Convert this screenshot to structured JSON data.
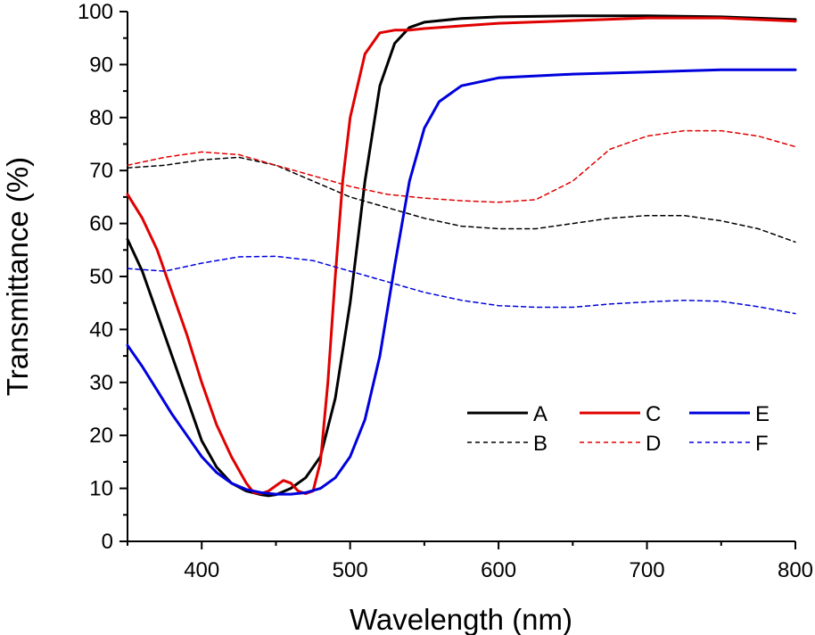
{
  "chart_data": {
    "type": "line",
    "xlabel": "Wavelength (nm)",
    "ylabel": "Transmittance (%)",
    "xlim": [
      350,
      800
    ],
    "ylim": [
      0,
      100
    ],
    "x_ticks": [
      400,
      500,
      600,
      700,
      800
    ],
    "y_ticks": [
      0,
      10,
      20,
      30,
      40,
      50,
      60,
      70,
      80,
      90,
      100
    ],
    "grid": false,
    "legend_position": "bottom-right",
    "series": [
      {
        "name": "A",
        "color": "#000000",
        "dash": "solid",
        "x": [
          350,
          360,
          370,
          380,
          390,
          400,
          410,
          420,
          430,
          440,
          445,
          450,
          460,
          470,
          480,
          490,
          500,
          510,
          520,
          530,
          540,
          550,
          575,
          600,
          650,
          700,
          750,
          800
        ],
        "y": [
          57,
          51,
          43,
          35,
          27,
          19,
          14,
          11,
          9.5,
          8.8,
          8.6,
          8.8,
          10,
          12,
          16,
          27,
          45,
          68,
          86,
          94,
          97,
          98,
          98.7,
          99,
          99.2,
          99.2,
          99,
          98.5
        ]
      },
      {
        "name": "B",
        "color": "#000000",
        "dash": "dashed",
        "x": [
          350,
          375,
          400,
          425,
          450,
          475,
          500,
          525,
          550,
          575,
          600,
          625,
          650,
          675,
          700,
          725,
          750,
          775,
          800
        ],
        "y": [
          70.5,
          71,
          72,
          72.5,
          71,
          68,
          65,
          63,
          61,
          59.5,
          59,
          59,
          60,
          61,
          61.5,
          61.5,
          60.5,
          59,
          56.5
        ]
      },
      {
        "name": "C",
        "color": "#e00000",
        "dash": "solid",
        "x": [
          350,
          360,
          370,
          380,
          390,
          400,
          410,
          420,
          430,
          435,
          440,
          445,
          450,
          455,
          460,
          465,
          470,
          475,
          480,
          485,
          490,
          495,
          500,
          510,
          520,
          530,
          540,
          550,
          575,
          600,
          650,
          700,
          750,
          800
        ],
        "y": [
          65.5,
          61,
          55,
          47,
          39,
          30,
          22,
          16,
          11,
          9.2,
          9,
          9.5,
          10.5,
          11.5,
          11,
          9.5,
          9,
          9.5,
          15,
          30,
          50,
          68,
          80,
          92,
          96,
          96.5,
          96.5,
          96.8,
          97.3,
          97.8,
          98.3,
          98.8,
          98.8,
          98.2
        ]
      },
      {
        "name": "D",
        "color": "#e00000",
        "dash": "dashed",
        "x": [
          350,
          375,
          400,
          425,
          450,
          475,
          500,
          525,
          550,
          575,
          600,
          625,
          650,
          675,
          700,
          725,
          750,
          775,
          800
        ],
        "y": [
          71,
          72.5,
          73.5,
          73,
          71,
          69,
          67,
          65.5,
          64.8,
          64.3,
          64,
          64.5,
          68,
          74,
          76.5,
          77.5,
          77.5,
          76.5,
          74.5
        ]
      },
      {
        "name": "E",
        "color": "#0000dd",
        "dash": "solid",
        "x": [
          350,
          360,
          370,
          380,
          390,
          400,
          410,
          420,
          430,
          440,
          450,
          460,
          470,
          480,
          490,
          500,
          510,
          520,
          530,
          540,
          550,
          560,
          575,
          600,
          650,
          700,
          750,
          800
        ],
        "y": [
          37,
          33,
          28.5,
          24,
          20,
          16,
          13,
          11,
          9.8,
          9.2,
          8.9,
          8.9,
          9.2,
          10,
          12,
          16,
          23,
          35,
          52,
          68,
          78,
          83,
          86,
          87.5,
          88.2,
          88.6,
          89,
          89
        ]
      },
      {
        "name": "F",
        "color": "#0000dd",
        "dash": "dashed",
        "x": [
          350,
          375,
          400,
          425,
          450,
          475,
          500,
          525,
          550,
          575,
          600,
          625,
          650,
          675,
          700,
          725,
          750,
          775,
          800
        ],
        "y": [
          51.5,
          51,
          52.5,
          53.7,
          53.8,
          53,
          51,
          49,
          47,
          45.5,
          44.5,
          44.2,
          44.2,
          44.8,
          45.2,
          45.5,
          45.3,
          44.3,
          43
        ]
      }
    ]
  }
}
